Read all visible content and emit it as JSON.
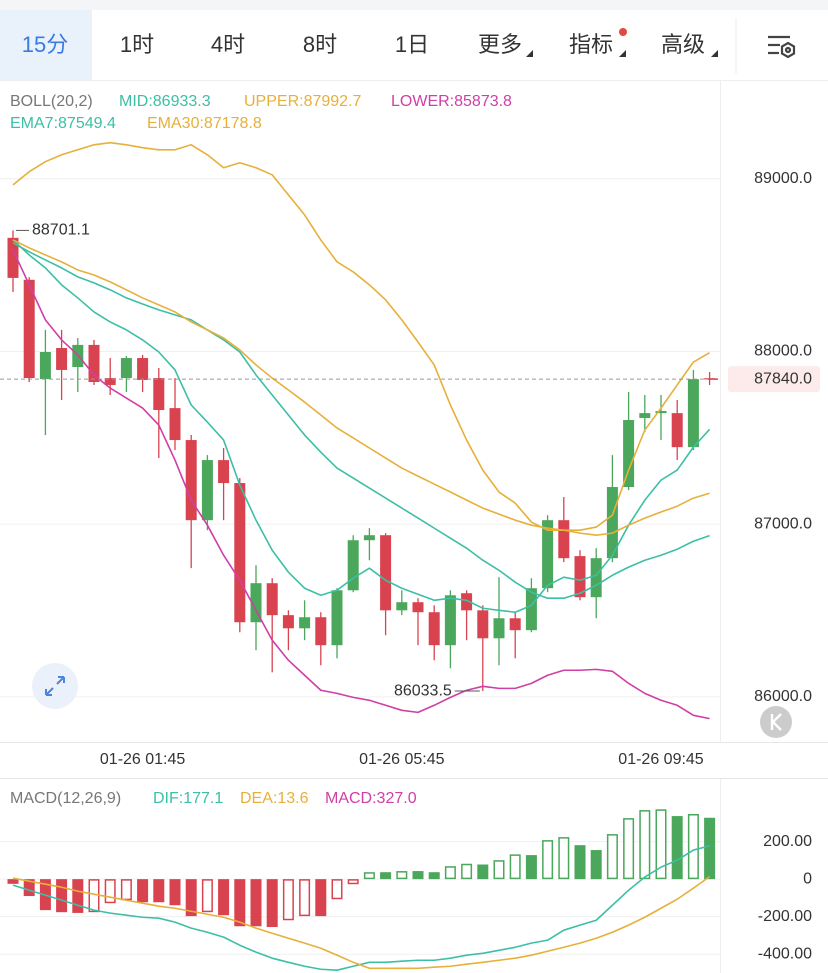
{
  "tabs": [
    "15分",
    "1时",
    "4时",
    "8时",
    "1日",
    "更多",
    "指标",
    "高级"
  ],
  "chart_data": [
    {
      "type": "candlestick",
      "indicator": "BOLL(20,2)",
      "categories": [
        null,
        null,
        null,
        null,
        null,
        null,
        null,
        null,
        "01-26 01:45",
        null,
        null,
        null,
        null,
        null,
        null,
        null,
        null,
        null,
        null,
        null,
        null,
        null,
        null,
        null,
        "01-26 05:45",
        null,
        null,
        null,
        null,
        null,
        null,
        null,
        null,
        null,
        null,
        null,
        null,
        null,
        null,
        null,
        "01-26 09:45",
        null,
        null,
        null
      ],
      "open": [
        88658,
        88415,
        87840,
        88020,
        87910,
        88038,
        87846,
        87846,
        87962,
        87846,
        87672,
        87487,
        87023,
        87371,
        87238,
        86432,
        86658,
        86473,
        86397,
        86461,
        86299,
        86617,
        86907,
        86936,
        86501,
        86548,
        86490,
        86299,
        86600,
        86501,
        86339,
        86455,
        86386,
        86629,
        87023,
        86815,
        86577,
        86803,
        87215,
        87615,
        87643,
        87643,
        87446,
        87845
      ],
      "high": [
        88701.1,
        88430,
        88125,
        88125,
        88078,
        88067,
        87962,
        87974,
        87980,
        87904,
        87846,
        87516,
        87400,
        87441,
        87267,
        86762,
        86687,
        86501,
        86559,
        86490,
        86629,
        86936,
        86977,
        86948,
        86617,
        86571,
        86530,
        86617,
        86617,
        86530,
        86693,
        86490,
        86687,
        87052,
        87157,
        86849,
        86861,
        87400,
        87765,
        87748,
        87748,
        87719,
        87893,
        87881
      ],
      "low": [
        88345,
        87823,
        87516,
        87719,
        87765,
        87806,
        87748,
        87765,
        87765,
        87383,
        87429,
        86745,
        86965,
        87023,
        86374,
        86270,
        86142,
        86270,
        86328,
        86183,
        86223,
        86606,
        86791,
        86357,
        86473,
        86299,
        86212,
        86165,
        86328,
        86033.5,
        86183,
        86223,
        86374,
        86606,
        86780,
        86559,
        86455,
        86780,
        87197,
        87533,
        87487,
        87371,
        87429,
        87806
      ],
      "close": [
        88426,
        87846,
        87997,
        87893,
        88038,
        87823,
        87806,
        87962,
        87835,
        87661,
        87487,
        87023,
        87371,
        87238,
        86432,
        86658,
        86473,
        86397,
        86461,
        86299,
        86617,
        86907,
        86936,
        86501,
        86548,
        86490,
        86299,
        86588,
        86501,
        86339,
        86455,
        86386,
        86629,
        87023,
        86803,
        86577,
        86803,
        87215,
        87603,
        87643,
        87655,
        87446,
        87840,
        87840
      ],
      "colors": {
        "up": "#4aa75b",
        "down": "#d9434f"
      },
      "series": [
        {
          "name": "MID:86933.3",
          "color": "#3cbfa6",
          "values": [
            88629,
            88577,
            88530,
            88484,
            88432,
            88397,
            88357,
            88310,
            88275,
            88241,
            88212,
            88183,
            88125,
            88067,
            87997,
            87864,
            87748,
            87632,
            87516,
            87417,
            87325,
            87267,
            87209,
            87151,
            87093,
            87035,
            86977,
            86919,
            86861,
            86791,
            86733,
            86664,
            86606,
            86571,
            86571,
            86600,
            86646,
            86704,
            86751,
            86791,
            86820,
            86855,
            86901,
            86933.3
          ]
        },
        {
          "name": "UPPER:87992.7",
          "color": "#e6b03a",
          "values": [
            88965,
            89041,
            89099,
            89139,
            89168,
            89197,
            89209,
            89197,
            89180,
            89168,
            89168,
            89197,
            89139,
            89064,
            89093,
            89064,
            89023,
            88907,
            88791,
            88646,
            88519,
            88461,
            88386,
            88299,
            88183,
            88055,
            87922,
            87690,
            87487,
            87313,
            87186,
            87122,
            87012,
            86965,
            86965,
            86965,
            86983,
            87052,
            87313,
            87545,
            87672,
            87806,
            87939,
            87992.7
          ]
        },
        {
          "name": "LOWER:85873.8",
          "color": "#cf3fa6",
          "values": [
            88588,
            88386,
            88183,
            88067,
            87980,
            87864,
            87788,
            87730,
            87672,
            87574,
            87371,
            87139,
            86994,
            86820,
            86675,
            86501,
            86328,
            86212,
            86125,
            86038,
            86020,
            85997,
            85980,
            85951,
            85922,
            85910,
            85951,
            85997,
            86038,
            86061,
            86049,
            86049,
            86078,
            86125,
            86154,
            86154,
            86159,
            86148,
            86078,
            86020,
            85980,
            85951,
            85893,
            85873.8
          ]
        },
        {
          "name": "EMA7:87549.4",
          "color": "#3cbfa6",
          "values": [
            88646,
            88559,
            88484,
            88386,
            88310,
            88229,
            88171,
            88125,
            88067,
            87997,
            87893,
            87690,
            87591,
            87487,
            87226,
            87023,
            86849,
            86722,
            86629,
            86588,
            86617,
            86687,
            86745,
            86675,
            86629,
            86594,
            86559,
            86571,
            86559,
            86513,
            86501,
            86490,
            86530,
            86646,
            86693,
            86675,
            86704,
            86820,
            86994,
            87139,
            87255,
            87313,
            87446,
            87549.4
          ]
        },
        {
          "name": "EMA30:87178.8",
          "color": "#e6b03a",
          "values": [
            88646,
            88600,
            88559,
            88519,
            88472,
            88443,
            88403,
            88357,
            88310,
            88270,
            88229,
            88171,
            88125,
            88078,
            88009,
            87922,
            87846,
            87777,
            87707,
            87632,
            87557,
            87499,
            87441,
            87383,
            87325,
            87278,
            87232,
            87186,
            87139,
            87093,
            87058,
            87023,
            86994,
            86977,
            86965,
            86948,
            86936,
            86948,
            86994,
            87035,
            87070,
            87104,
            87151,
            87178.8
          ]
        }
      ],
      "last_price": {
        "value": 87840,
        "label": "87840.0"
      },
      "ylim": [
        85750,
        89520
      ],
      "yticks": [
        {
          "value": 86000,
          "label": "86000.0"
        },
        {
          "value": 87000,
          "label": "87000.0"
        },
        {
          "value": 88000,
          "label": "88000.0"
        },
        {
          "value": 89000,
          "label": "89000.0"
        }
      ],
      "grid": true
    },
    {
      "type": "macd",
      "indicator": "MACD(12,26,9)",
      "series": [
        {
          "name": "DIF:177.1",
          "color": "#3cbfa6",
          "values": [
            -32,
            -59,
            -85,
            -112,
            -139,
            -165,
            -181,
            -192,
            -203,
            -208,
            -229,
            -261,
            -283,
            -309,
            -352,
            -389,
            -421,
            -443,
            -464,
            -480,
            -485,
            -464,
            -443,
            -443,
            -437,
            -432,
            -432,
            -421,
            -405,
            -395,
            -379,
            -363,
            -341,
            -325,
            -272,
            -245,
            -219,
            -139,
            -59,
            11,
            64,
            101,
            155,
            177.1
          ]
        },
        {
          "name": "DEA:13.6",
          "color": "#e6b03a",
          "values": [
            5,
            -11,
            -27,
            -43,
            -64,
            -80,
            -96,
            -112,
            -128,
            -144,
            -155,
            -171,
            -187,
            -203,
            -229,
            -261,
            -288,
            -315,
            -341,
            -368,
            -405,
            -443,
            -475,
            -475,
            -475,
            -475,
            -469,
            -464,
            -453,
            -443,
            -432,
            -421,
            -405,
            -384,
            -363,
            -341,
            -315,
            -283,
            -245,
            -203,
            -155,
            -107,
            -48,
            13.6
          ]
        },
        {
          "name": "MACD:327.0",
          "type": "bar",
          "colors": {
            "positive": "#4aa75b",
            "negative": "#d9434f"
          },
          "color": "#cf3fa6",
          "values": [
            -25,
            -90,
            -165,
            -176,
            -180,
            -176,
            -128,
            -112,
            -123,
            -123,
            -139,
            -197,
            -176,
            -192,
            -251,
            -251,
            -255,
            -219,
            -197,
            -197,
            -107,
            -27,
            37,
            37,
            43,
            43,
            37,
            69,
            82,
            78,
            101,
            132,
            128,
            208,
            224,
            181,
            155,
            240,
            325,
            368,
            372,
            336,
            347,
            327
          ]
        }
      ],
      "ylim": [
        -500,
        395
      ],
      "yticks": [
        {
          "value": 200,
          "label": "200.00"
        },
        0,
        {
          "value": -200,
          "label": "-200.00"
        },
        {
          "value": -400,
          "label": "-400.00"
        }
      ],
      "grid": true
    }
  ]
}
